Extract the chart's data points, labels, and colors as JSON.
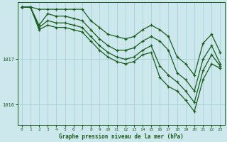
{
  "title": "Graphe pression niveau de la mer (hPa)",
  "bg_color": "#cce8ed",
  "grid_color": "#aad4da",
  "line_color": "#1a5c1a",
  "xlim": [
    -0.5,
    23.5
  ],
  "ylim": [
    1015.55,
    1018.25
  ],
  "yticks": [
    1016,
    1017
  ],
  "xticks": [
    0,
    1,
    2,
    3,
    4,
    5,
    6,
    7,
    8,
    9,
    10,
    11,
    12,
    13,
    14,
    15,
    16,
    17,
    18,
    19,
    20,
    21,
    22,
    23
  ],
  "series": [
    [
      1018.15,
      1018.15,
      1018.1,
      1018.1,
      1018.1,
      1018.1,
      1018.1,
      1018.1,
      1017.85,
      1017.7,
      1017.55,
      1017.5,
      1017.45,
      1017.5,
      1017.65,
      1017.75,
      1017.65,
      1017.5,
      1017.05,
      1016.9,
      1016.65,
      1017.35,
      1017.55,
      1017.15
    ],
    [
      1018.15,
      1018.15,
      1017.75,
      1018.0,
      1017.95,
      1017.95,
      1017.9,
      1017.85,
      1017.65,
      1017.45,
      1017.3,
      1017.2,
      1017.2,
      1017.25,
      1017.4,
      1017.5,
      1017.4,
      1017.2,
      1016.7,
      1016.55,
      1016.3,
      1017.0,
      1017.3,
      1016.9
    ],
    [
      1018.15,
      1018.15,
      1017.7,
      1017.85,
      1017.8,
      1017.8,
      1017.75,
      1017.7,
      1017.5,
      1017.3,
      1017.15,
      1017.05,
      1017.0,
      1017.05,
      1017.2,
      1017.3,
      1016.85,
      1016.65,
      1016.5,
      1016.3,
      1016.05,
      1016.75,
      1017.1,
      1016.85
    ],
    [
      1018.15,
      1018.15,
      1017.65,
      1017.75,
      1017.7,
      1017.7,
      1017.65,
      1017.6,
      1017.4,
      1017.2,
      1017.05,
      1016.95,
      1016.9,
      1016.95,
      1017.1,
      1017.15,
      1016.6,
      1016.4,
      1016.3,
      1016.1,
      1015.85,
      1016.55,
      1016.9,
      1016.8
    ]
  ]
}
